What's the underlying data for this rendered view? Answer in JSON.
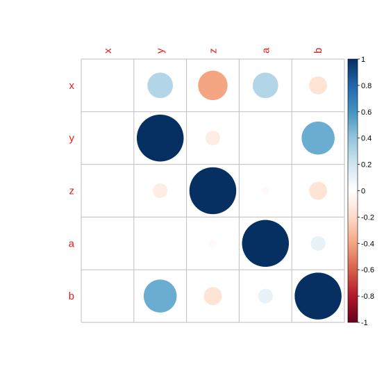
{
  "chart_data": {
    "type": "heatmap",
    "style": "correlation-circles",
    "title": "",
    "variables": [
      "x",
      "y",
      "z",
      "a",
      "b"
    ],
    "row_labels": [
      "x",
      "y",
      "z",
      "a",
      "b"
    ],
    "col_labels": [
      "x",
      "y",
      "z",
      "a",
      "b"
    ],
    "matrix": [
      [
        0.0,
        0.3,
        -0.4,
        0.3,
        -0.15
      ],
      [
        0.0,
        1.0,
        -0.1,
        0.0,
        0.5
      ],
      [
        0.0,
        -0.1,
        1.0,
        -0.03,
        -0.15
      ],
      [
        0.0,
        0.0,
        -0.03,
        1.0,
        0.1
      ],
      [
        0.0,
        0.5,
        -0.15,
        0.1,
        1.0
      ]
    ],
    "colorbar": {
      "min": -1,
      "max": 1,
      "ticks": [
        "1",
        "0.8",
        "0.6",
        "0.4",
        "0.2",
        "0",
        "-0.2",
        "-0.4",
        "-0.6",
        "-0.8",
        "-1"
      ]
    },
    "grid": true,
    "label_color": "#E41A1C",
    "palette": [
      "#67001F",
      "#B2182B",
      "#D6604D",
      "#F4A582",
      "#FDDBC7",
      "#FFFFFF",
      "#D1E5F0",
      "#92C5DE",
      "#4393C3",
      "#2166AC",
      "#053061"
    ]
  }
}
